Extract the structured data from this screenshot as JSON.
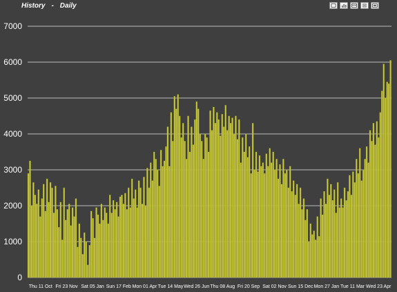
{
  "header": {
    "title_left": "History",
    "title_sep": "-",
    "title_right": "Daily",
    "toolbar": [
      {
        "name": "zoom-icon"
      },
      {
        "name": "bar-chart-icon"
      },
      {
        "name": "table-icon"
      },
      {
        "name": "list-icon"
      },
      {
        "name": "export-icon"
      }
    ]
  },
  "colors": {
    "background": "#3f3f3f",
    "bar": "#c9c940",
    "bar_edge": "#8c8c1e",
    "grid": "#bdbdbd"
  },
  "chart_data": {
    "type": "bar",
    "title": "",
    "xlabel": "",
    "ylabel": "",
    "ylim": [
      0,
      7000
    ],
    "yticks": [
      0,
      1000,
      2000,
      3000,
      4000,
      5000,
      6000,
      7000
    ],
    "grid": true,
    "x_tick_labels": [
      "Thu 11 Oct",
      "Fri 23 Nov",
      "Sat 05 Jan",
      "Sun 17 Feb",
      "Mon 01 Apr",
      "Tue 14 May",
      "Wed 26 Jun",
      "Thu 08 Aug",
      "Fri 20 Sep",
      "Sat 02 Nov",
      "Sun 15 Dec",
      "Mon 27 Jan",
      "Tue 11 Mar",
      "Wed 23 Apr"
    ],
    "values": [
      2900,
      3250,
      2000,
      2650,
      2300,
      2050,
      2450,
      1700,
      2200,
      2600,
      1850,
      2750,
      2100,
      2650,
      2500,
      1800,
      2550,
      1900,
      1400,
      2100,
      1050,
      2500,
      1600,
      1900,
      2050,
      1450,
      1950,
      1700,
      2200,
      850,
      1500,
      1100,
      650,
      1250,
      1000,
      350,
      900,
      1850,
      1650,
      1100,
      1950,
      1750,
      1500,
      2050,
      1600,
      1950,
      1800,
      1500,
      2300,
      1800,
      2150,
      1900,
      2100,
      1700,
      2250,
      2300,
      2050,
      2350,
      1900,
      2500,
      1950,
      2750,
      2200,
      2450,
      1950,
      2700,
      2500,
      2050,
      2800,
      2000,
      3050,
      2500,
      3200,
      2700,
      3500,
      3300,
      3000,
      2550,
      3550,
      3100,
      3250,
      3650,
      4200,
      3100,
      4600,
      3800,
      5050,
      4700,
      5100,
      4500,
      3900,
      4300,
      3800,
      3300,
      4500,
      3500,
      4200,
      3700,
      4400,
      4900,
      4700,
      4000,
      3800,
      3300,
      4000,
      3900,
      3500,
      4650,
      4100,
      4750,
      4300,
      4600,
      4400,
      3950,
      4550,
      4200,
      4800,
      4100,
      4500,
      4300,
      4450,
      4000,
      4500,
      3850,
      4400,
      3200,
      3900,
      3500,
      4000,
      3350,
      3650,
      2900,
      4300,
      3000,
      3500,
      2950,
      3400,
      3100,
      3200,
      2900,
      3450,
      3100,
      3600,
      3200,
      3500,
      3000,
      3300,
      2750,
      3150,
      2600,
      3300,
      2900,
      3000,
      2500,
      3100,
      2400,
      2700,
      2300,
      2600,
      2050,
      2500,
      1900,
      2200,
      1600,
      1900,
      1000,
      1500,
      1200,
      1300,
      1050,
      1700,
      1150,
      2200,
      1750,
      2400,
      2050,
      2750,
      2300,
      2600,
      2150,
      2450,
      1800,
      2650,
      1950,
      2200,
      1950,
      2500,
      2150,
      2400,
      2850,
      2300,
      2950,
      2650,
      3300,
      2900,
      3600,
      2700,
      3000,
      3300,
      3650,
      3200,
      4100,
      3800,
      4300,
      3700,
      4350,
      3900,
      4600,
      5200,
      5950,
      5000,
      5450,
      5400,
      6050
    ]
  }
}
